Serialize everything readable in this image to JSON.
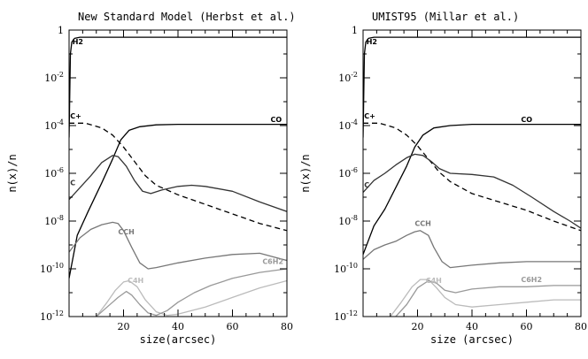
{
  "chart_data": [
    {
      "type": "line",
      "title": "New Standard Model (Herbst et al.)",
      "xlabel": "size(arcsec)",
      "ylabel": "n(x)/n",
      "xlim": [
        0,
        80
      ],
      "ylim_log10": [
        -12,
        0
      ],
      "x_ticks": [
        20,
        40,
        60,
        80
      ],
      "y_ticks": [
        {
          "v": 0,
          "label": "1",
          "sup": ""
        },
        {
          "v": -2,
          "label": "10",
          "sup": "-2"
        },
        {
          "v": -4,
          "label": "10",
          "sup": "-4"
        },
        {
          "v": -6,
          "label": "10",
          "sup": "-6"
        },
        {
          "v": -8,
          "label": "10",
          "sup": "-8"
        },
        {
          "v": -10,
          "label": "10",
          "sup": "-10"
        },
        {
          "v": -12,
          "label": "10",
          "sup": "-12"
        }
      ],
      "series": [
        {
          "name": "H2",
          "label": "H2",
          "color": "#000000",
          "dash": false,
          "points": [
            [
              0,
              -4.5
            ],
            [
              0.5,
              -1
            ],
            [
              1,
              -0.5
            ],
            [
              2,
              -0.35
            ],
            [
              4,
              -0.3
            ],
            [
              80,
              -0.3
            ]
          ],
          "label_at": [
            1.2,
            -0.6
          ]
        },
        {
          "name": "CO",
          "label": "CO",
          "color": "#000000",
          "dash": false,
          "points": [
            [
              0,
              -10.4
            ],
            [
              3,
              -8.6
            ],
            [
              7,
              -7.6
            ],
            [
              12,
              -6.4
            ],
            [
              16,
              -5.4
            ],
            [
              19,
              -4.6
            ],
            [
              22,
              -4.2
            ],
            [
              26,
              -4.05
            ],
            [
              32,
              -3.97
            ],
            [
              40,
              -3.95
            ],
            [
              80,
              -3.95
            ]
          ],
          "label_at": [
            74,
            -3.85
          ]
        },
        {
          "name": "C+",
          "label": "C+",
          "color": "#000000",
          "dash": true,
          "points": [
            [
              0,
              -3.9
            ],
            [
              6,
              -3.9
            ],
            [
              12,
              -4.1
            ],
            [
              16,
              -4.4
            ],
            [
              20,
              -4.9
            ],
            [
              24,
              -5.5
            ],
            [
              28,
              -6.1
            ],
            [
              32,
              -6.5
            ],
            [
              40,
              -6.9
            ],
            [
              50,
              -7.3
            ],
            [
              60,
              -7.7
            ],
            [
              70,
              -8.1
            ],
            [
              80,
              -8.4
            ]
          ],
          "label_at": [
            0.4,
            -3.7
          ]
        },
        {
          "name": "C",
          "label": "C",
          "color": "#333333",
          "dash": false,
          "points": [
            [
              0,
              -7.1
            ],
            [
              4,
              -6.6
            ],
            [
              8,
              -6.1
            ],
            [
              12,
              -5.55
            ],
            [
              16,
              -5.25
            ],
            [
              18,
              -5.3
            ],
            [
              21,
              -5.7
            ],
            [
              24,
              -6.3
            ],
            [
              27,
              -6.75
            ],
            [
              30,
              -6.85
            ],
            [
              34,
              -6.7
            ],
            [
              40,
              -6.55
            ],
            [
              45,
              -6.5
            ],
            [
              50,
              -6.55
            ],
            [
              60,
              -6.75
            ],
            [
              70,
              -7.2
            ],
            [
              80,
              -7.6
            ]
          ],
          "label_at": [
            0.4,
            -6.5
          ]
        },
        {
          "name": "CCH",
          "label": "CCH",
          "color": "#777777",
          "dash": false,
          "points": [
            [
              0,
              -9.3
            ],
            [
              4,
              -8.7
            ],
            [
              8,
              -8.35
            ],
            [
              12,
              -8.15
            ],
            [
              16,
              -8.05
            ],
            [
              18,
              -8.1
            ],
            [
              20,
              -8.4
            ],
            [
              23,
              -9.1
            ],
            [
              26,
              -9.75
            ],
            [
              29,
              -10
            ],
            [
              32,
              -9.95
            ],
            [
              40,
              -9.75
            ],
            [
              50,
              -9.55
            ],
            [
              60,
              -9.4
            ],
            [
              70,
              -9.35
            ],
            [
              75,
              -9.5
            ],
            [
              80,
              -9.65
            ]
          ],
          "label_at": [
            18,
            -8.55
          ]
        },
        {
          "name": "C4H",
          "label": "C4H",
          "color": "#bbbbbb",
          "dash": false,
          "points": [
            [
              10,
              -12
            ],
            [
              14,
              -11.4
            ],
            [
              17,
              -10.9
            ],
            [
              20,
              -10.55
            ],
            [
              22,
              -10.5
            ],
            [
              25,
              -10.75
            ],
            [
              28,
              -11.3
            ],
            [
              32,
              -11.8
            ],
            [
              36,
              -11.95
            ],
            [
              40,
              -11.9
            ],
            [
              50,
              -11.6
            ],
            [
              60,
              -11.2
            ],
            [
              70,
              -10.8
            ],
            [
              80,
              -10.5
            ]
          ],
          "label_at": [
            21.5,
            -10.6
          ]
        },
        {
          "name": "C6H2",
          "label": "C6H2",
          "color": "#999999",
          "dash": false,
          "points": [
            [
              10,
              -12
            ],
            [
              14,
              -11.6
            ],
            [
              18,
              -11.2
            ],
            [
              21,
              -10.95
            ],
            [
              23,
              -11.1
            ],
            [
              26,
              -11.5
            ],
            [
              29,
              -11.85
            ],
            [
              32,
              -11.95
            ],
            [
              36,
              -11.75
            ],
            [
              40,
              -11.4
            ],
            [
              46,
              -11
            ],
            [
              52,
              -10.7
            ],
            [
              60,
              -10.4
            ],
            [
              70,
              -10.15
            ],
            [
              80,
              -10.0
            ]
          ],
          "label_at": [
            71,
            -9.8
          ]
        }
      ]
    },
    {
      "type": "line",
      "title": "UMIST95 (Millar et al.)",
      "xlabel": "size (arcsec)",
      "ylabel": "n(x)/n",
      "xlim": [
        0,
        80
      ],
      "ylim_log10": [
        -12,
        0
      ],
      "x_ticks": [
        20,
        40,
        60,
        80
      ],
      "y_ticks": [
        {
          "v": 0,
          "label": "1",
          "sup": ""
        },
        {
          "v": -2,
          "label": "10",
          "sup": "-2"
        },
        {
          "v": -4,
          "label": "10",
          "sup": "-4"
        },
        {
          "v": -6,
          "label": "10",
          "sup": "-6"
        },
        {
          "v": -8,
          "label": "10",
          "sup": "-8"
        },
        {
          "v": -10,
          "label": "10",
          "sup": "-10"
        },
        {
          "v": -12,
          "label": "10",
          "sup": "-12"
        }
      ],
      "series": [
        {
          "name": "H2",
          "label": "H2",
          "color": "#000000",
          "dash": false,
          "points": [
            [
              0,
              -4.5
            ],
            [
              0.5,
              -1
            ],
            [
              1,
              -0.5
            ],
            [
              2,
              -0.35
            ],
            [
              4,
              -0.3
            ],
            [
              80,
              -0.3
            ]
          ],
          "label_at": [
            1.2,
            -0.6
          ]
        },
        {
          "name": "CO",
          "label": "CO",
          "color": "#000000",
          "dash": false,
          "points": [
            [
              0,
              -9.4
            ],
            [
              4,
              -8.2
            ],
            [
              8,
              -7.5
            ],
            [
              12,
              -6.6
            ],
            [
              16,
              -5.7
            ],
            [
              19,
              -4.9
            ],
            [
              22,
              -4.4
            ],
            [
              26,
              -4.1
            ],
            [
              32,
              -4.0
            ],
            [
              40,
              -3.95
            ],
            [
              80,
              -3.95
            ]
          ],
          "label_at": [
            58,
            -3.85
          ]
        },
        {
          "name": "C+",
          "label": "C+",
          "color": "#000000",
          "dash": true,
          "points": [
            [
              0,
              -3.9
            ],
            [
              6,
              -3.9
            ],
            [
              12,
              -4.1
            ],
            [
              16,
              -4.4
            ],
            [
              20,
              -4.85
            ],
            [
              24,
              -5.4
            ],
            [
              28,
              -5.95
            ],
            [
              32,
              -6.35
            ],
            [
              40,
              -6.85
            ],
            [
              50,
              -7.2
            ],
            [
              60,
              -7.55
            ],
            [
              70,
              -8.0
            ],
            [
              80,
              -8.4
            ]
          ],
          "label_at": [
            0.4,
            -3.7
          ]
        },
        {
          "name": "C",
          "label": "C",
          "color": "#333333",
          "dash": false,
          "points": [
            [
              0,
              -6.8
            ],
            [
              4,
              -6.3
            ],
            [
              8,
              -6
            ],
            [
              12,
              -5.65
            ],
            [
              16,
              -5.35
            ],
            [
              19,
              -5.2
            ],
            [
              22,
              -5.25
            ],
            [
              25,
              -5.5
            ],
            [
              28,
              -5.8
            ],
            [
              32,
              -6.0
            ],
            [
              40,
              -6.05
            ],
            [
              48,
              -6.15
            ],
            [
              55,
              -6.5
            ],
            [
              62,
              -7.0
            ],
            [
              70,
              -7.6
            ],
            [
              76,
              -8.0
            ],
            [
              80,
              -8.3
            ]
          ],
          "label_at": [
            0.4,
            -6.6
          ]
        },
        {
          "name": "CCH",
          "label": "CCH",
          "color": "#777777",
          "dash": false,
          "points": [
            [
              0,
              -9.6
            ],
            [
              4,
              -9.2
            ],
            [
              8,
              -9
            ],
            [
              12,
              -8.85
            ],
            [
              16,
              -8.6
            ],
            [
              19,
              -8.45
            ],
            [
              21,
              -8.4
            ],
            [
              24,
              -8.6
            ],
            [
              26,
              -9.1
            ],
            [
              29,
              -9.7
            ],
            [
              32,
              -9.95
            ],
            [
              40,
              -9.85
            ],
            [
              50,
              -9.75
            ],
            [
              60,
              -9.7
            ],
            [
              70,
              -9.7
            ],
            [
              80,
              -9.7
            ]
          ],
          "label_at": [
            19,
            -8.2
          ]
        },
        {
          "name": "C4H",
          "label": "C4H",
          "color": "#bbbbbb",
          "dash": false,
          "points": [
            [
              10,
              -12
            ],
            [
              14,
              -11.4
            ],
            [
              18,
              -10.75
            ],
            [
              21,
              -10.45
            ],
            [
              24,
              -10.45
            ],
            [
              27,
              -10.8
            ],
            [
              30,
              -11.2
            ],
            [
              34,
              -11.5
            ],
            [
              40,
              -11.6
            ],
            [
              50,
              -11.5
            ],
            [
              60,
              -11.4
            ],
            [
              70,
              -11.3
            ],
            [
              80,
              -11.3
            ]
          ],
          "label_at": [
            23,
            -10.6
          ]
        },
        {
          "name": "C6H2",
          "label": "C6H2",
          "color": "#999999",
          "dash": false,
          "points": [
            [
              12,
              -12
            ],
            [
              16,
              -11.5
            ],
            [
              20,
              -10.8
            ],
            [
              24,
              -10.5
            ],
            [
              27,
              -10.6
            ],
            [
              30,
              -10.9
            ],
            [
              34,
              -11.0
            ],
            [
              40,
              -10.85
            ],
            [
              50,
              -10.75
            ],
            [
              60,
              -10.75
            ],
            [
              70,
              -10.7
            ],
            [
              80,
              -10.7
            ]
          ],
          "label_at": [
            58,
            -10.55
          ]
        }
      ]
    }
  ]
}
